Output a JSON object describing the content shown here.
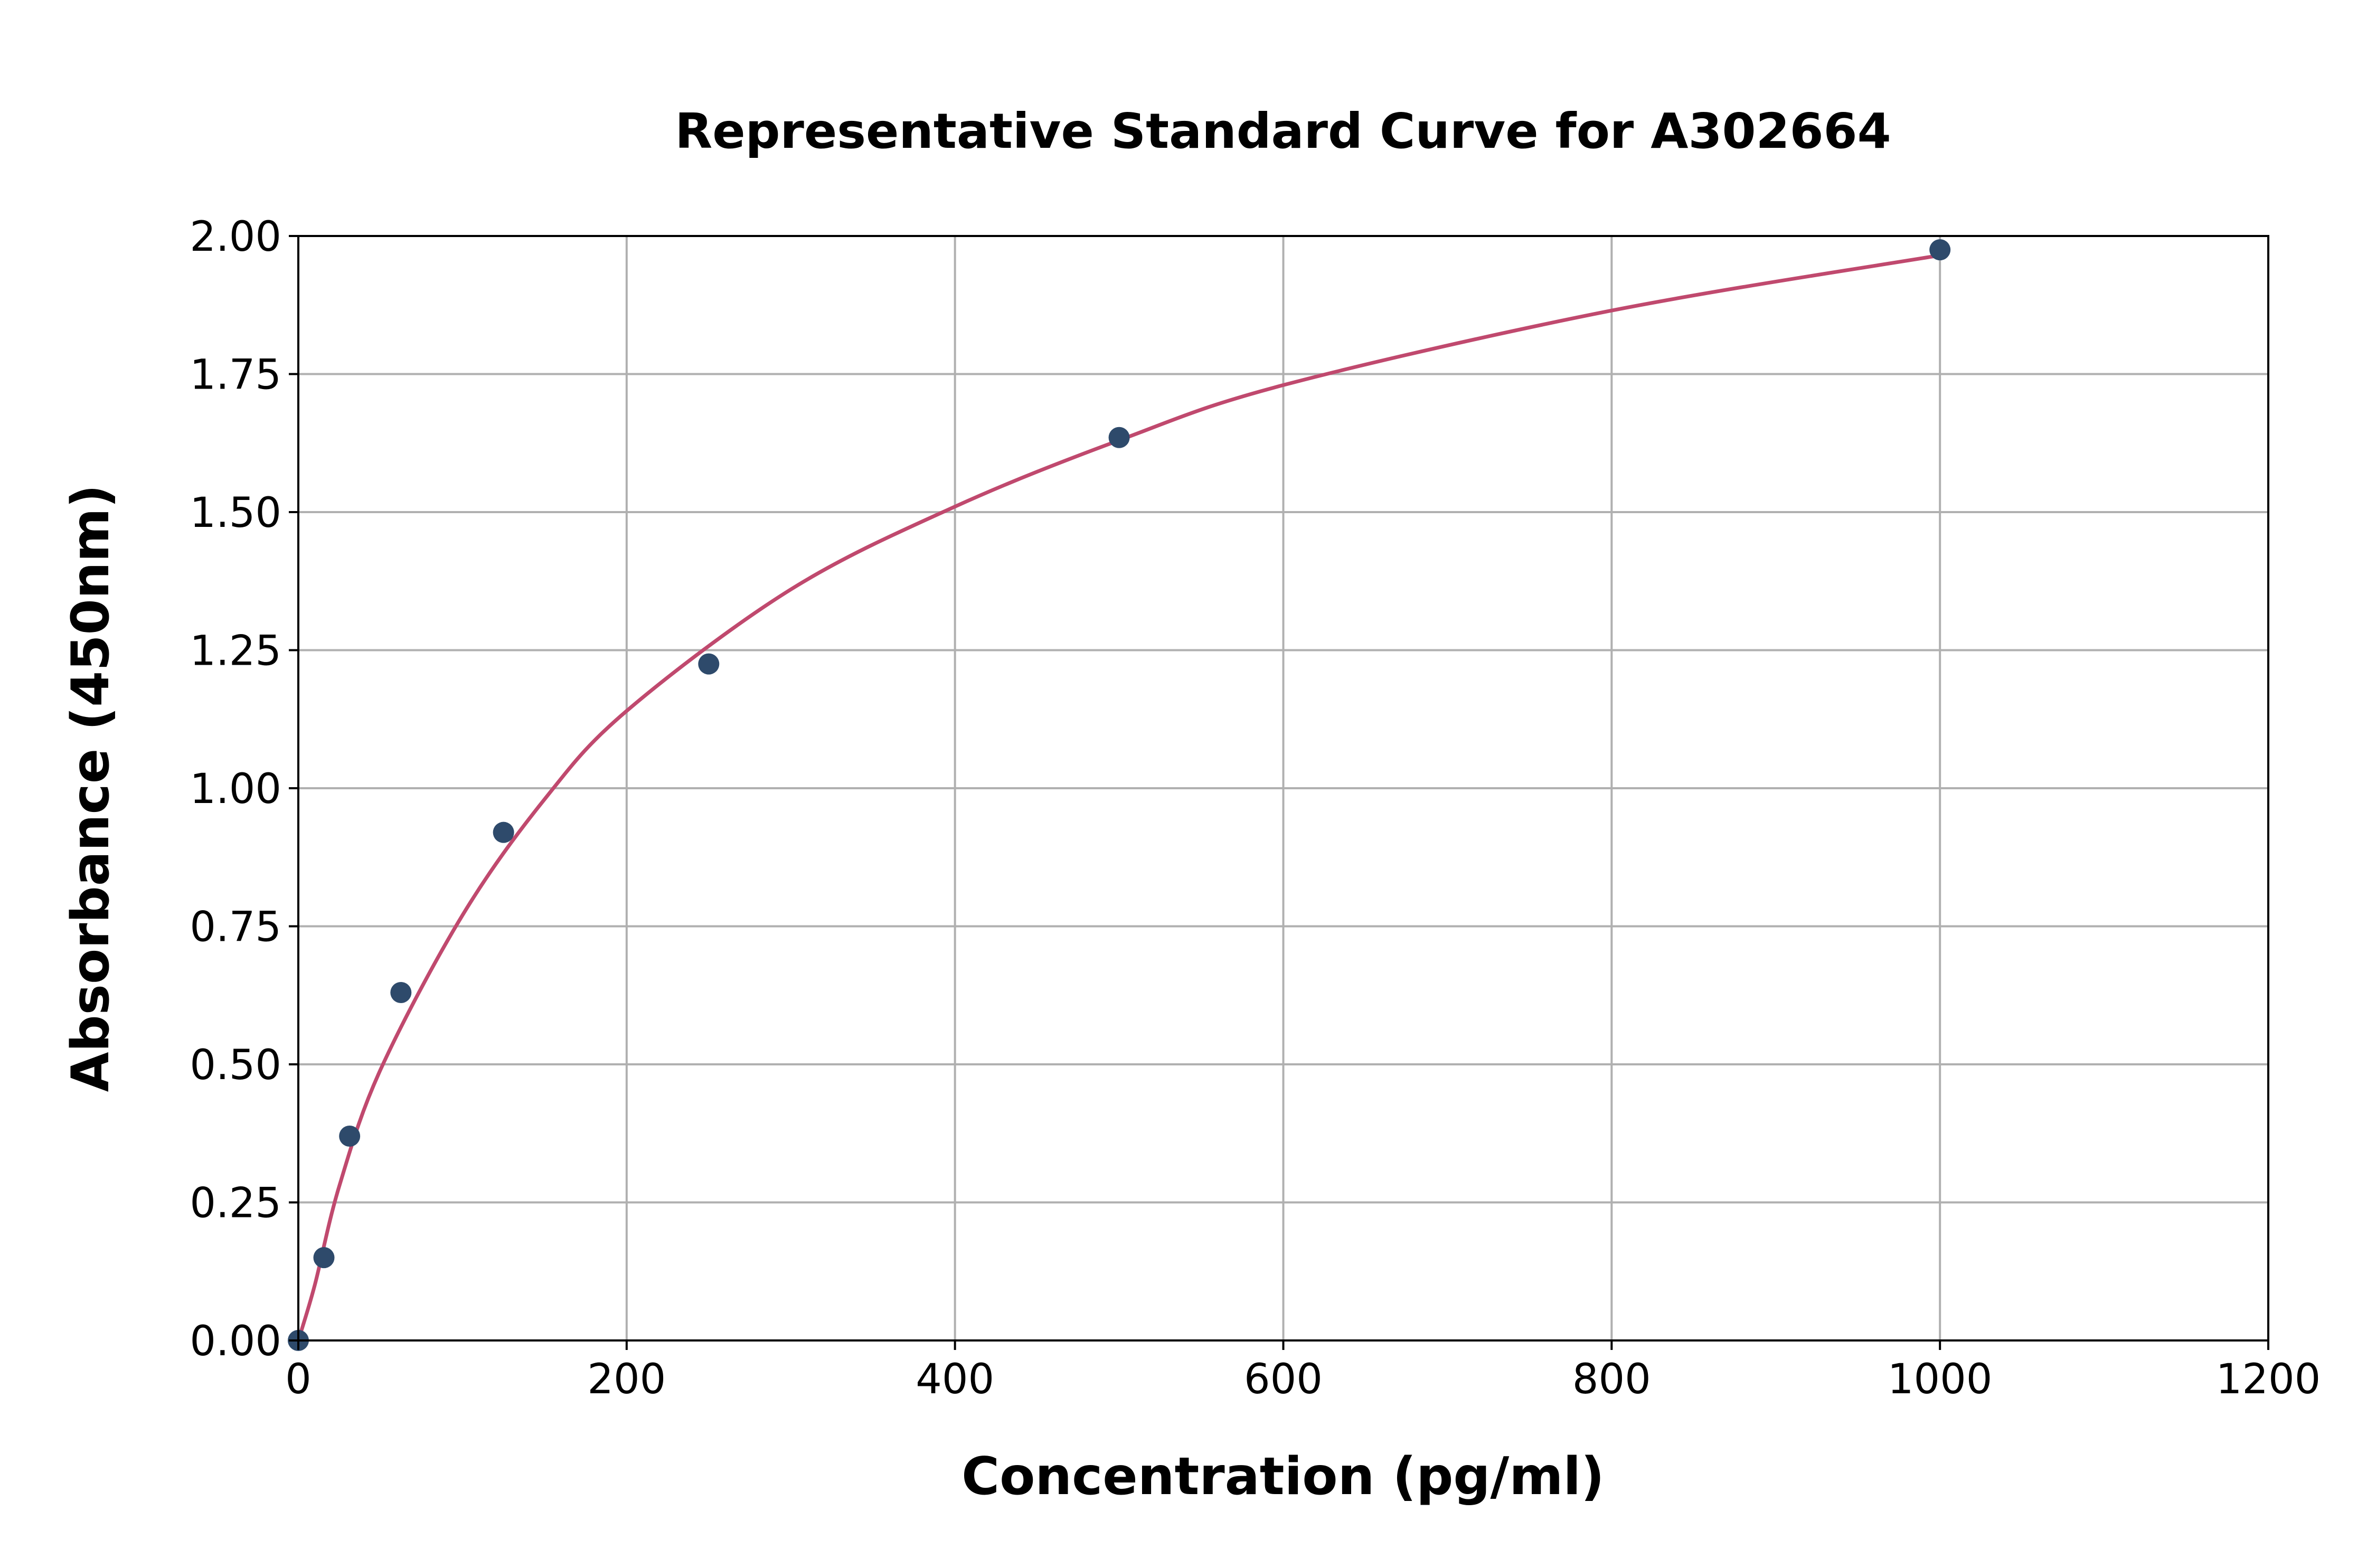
{
  "chart_data": {
    "type": "scatter",
    "title": "Representative Standard Curve for A302664",
    "xlabel": "Concentration (pg/ml)",
    "ylabel": "Absorbance (450nm)",
    "xlim": [
      0,
      1200
    ],
    "ylim": [
      0,
      2.0
    ],
    "xticks": [
      "0",
      "200",
      "400",
      "600",
      "800",
      "1000",
      "1200"
    ],
    "yticks": [
      "0.00",
      "0.25",
      "0.50",
      "0.75",
      "1.00",
      "1.25",
      "1.50",
      "1.75",
      "2.00"
    ],
    "grid": true,
    "points": {
      "x": [
        0,
        15.6,
        31.25,
        62.5,
        125,
        250,
        500,
        1000
      ],
      "y": [
        0.0,
        0.15,
        0.37,
        0.63,
        0.92,
        1.225,
        1.635,
        1.975
      ],
      "color": "#2e4a6b"
    },
    "fit_curve": {
      "x": [
        0,
        10,
        25,
        50,
        100,
        150,
        200,
        300,
        400,
        500,
        600,
        800,
        1000
      ],
      "y": [
        0.0,
        0.1,
        0.28,
        0.49,
        0.77,
        0.98,
        1.14,
        1.36,
        1.51,
        1.63,
        1.73,
        1.865,
        1.965
      ],
      "color": "#c0496e"
    }
  }
}
